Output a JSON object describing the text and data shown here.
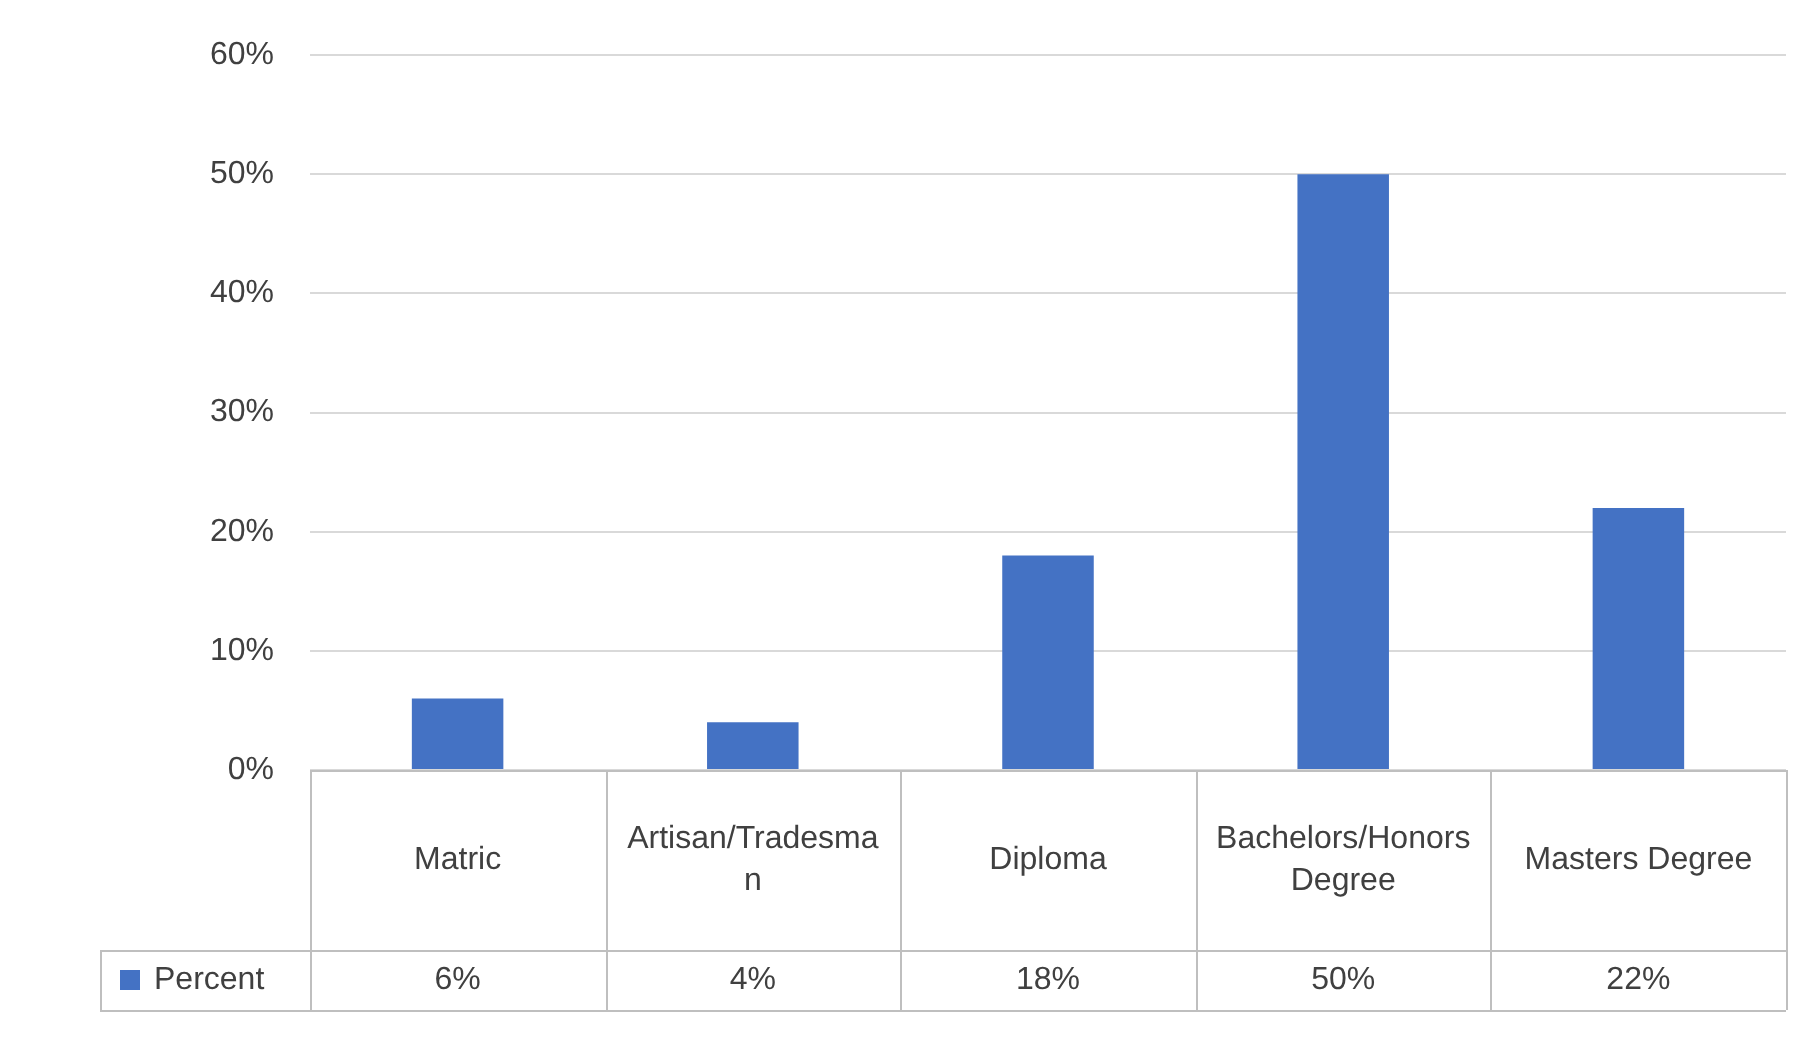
{
  "chart_data": {
    "type": "bar",
    "categories": [
      "Matric",
      "Artisan/Tradesman",
      "Diploma",
      "Bachelors/Honors Degree",
      "Masters Degree"
    ],
    "series": [
      {
        "name": "Percent",
        "color": "#4472c4",
        "values": [
          6,
          4,
          18,
          50,
          22
        ],
        "value_labels": [
          "6%",
          "4%",
          "18%",
          "50%",
          "22%"
        ]
      }
    ],
    "ylim": [
      0,
      60
    ],
    "yticks": [
      {
        "value": 0,
        "label": "0%"
      },
      {
        "value": 10,
        "label": "10%"
      },
      {
        "value": 20,
        "label": "20%"
      },
      {
        "value": 30,
        "label": "30%"
      },
      {
        "value": 40,
        "label": "40%"
      },
      {
        "value": 50,
        "label": "50%"
      },
      {
        "value": 60,
        "label": "60%"
      }
    ],
    "grid": "y",
    "legend": "bottom"
  }
}
